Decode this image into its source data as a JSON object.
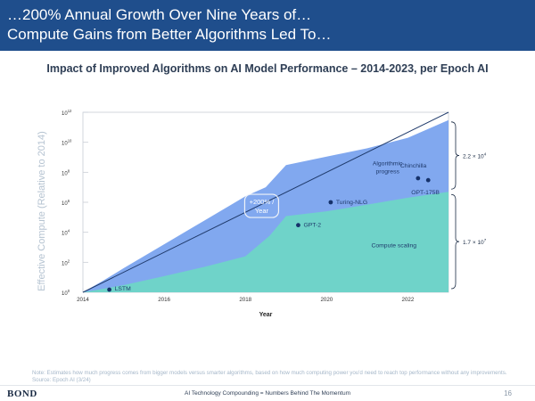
{
  "header": {
    "line1": "…200% Annual Growth Over Nine Years of…",
    "line2": "Compute Gains from Better Algorithms Led To…"
  },
  "subtitle": "Impact of Improved Algorithms on AI Model Performance – 2014-2023, per Epoch AI",
  "chart_data": {
    "type": "area",
    "xlabel": "Year",
    "ylabel": "Effective Compute (Relative to 2014)",
    "xlim": [
      2014,
      2023
    ],
    "ylim": [
      1,
      1000000000000
    ],
    "y_scale": "log",
    "x_ticks": [
      "2014",
      "2016",
      "2018",
      "2020",
      "2022"
    ],
    "y_tick_values": [
      1,
      100,
      10000,
      1000000,
      100000000,
      10000000000,
      1000000000000
    ],
    "y_tick_bases": [
      "10",
      "10",
      "10",
      "10",
      "10",
      "10",
      "10"
    ],
    "y_tick_exponents": [
      "0",
      "2",
      "4",
      "6",
      "8",
      "10",
      "12"
    ],
    "series": [
      {
        "name": "Algorithmic progress",
        "color": "#7aa3ee",
        "x": [
          2014,
          2014.5,
          2015,
          2016,
          2017,
          2018,
          2018.5,
          2019,
          2020,
          2021,
          2022,
          2023
        ],
        "y": [
          1,
          6,
          40,
          1600,
          63000,
          2500000,
          10000000,
          300000000,
          1100000000,
          4000000000,
          20000000000,
          300000000000
        ]
      },
      {
        "name": "Compute scaling",
        "color": "#6fd3c9",
        "x": [
          2014,
          2015,
          2016,
          2017,
          2018,
          2018.6,
          2019,
          2020,
          2021,
          2022,
          2023
        ],
        "y": [
          1,
          3,
          12,
          50,
          250,
          6000,
          120000,
          250000,
          700000,
          2000000,
          5000000
        ]
      }
    ],
    "trend_line": {
      "x": [
        2014,
        2023
      ],
      "y": [
        1,
        1000000000000
      ]
    },
    "models": [
      {
        "name": "LSTM",
        "x": 2014.65,
        "y": 1.5,
        "label_dx": 6,
        "label_dy": 1
      },
      {
        "name": "GPT-2",
        "x": 2019.3,
        "y": 30000,
        "label_dx": 6,
        "label_dy": 2
      },
      {
        "name": "Turing-NLG",
        "x": 2020.1,
        "y": 1000000,
        "label_dx": 6,
        "label_dy": 2
      },
      {
        "name": "Chinchilla",
        "x": 2022.25,
        "y": 40000000,
        "label_dx": -20,
        "label_dy": -12
      },
      {
        "name": "OPT-175B",
        "x": 2022.5,
        "y": 30000000,
        "label_dx": -19,
        "label_dy": 16
      }
    ],
    "annotations": {
      "rate_box": [
        "+200% /",
        "Year"
      ],
      "rate_box_anchor": {
        "x": 2018.4,
        "y": 500000
      },
      "algorithmic_label": [
        "Algorithmic",
        "progress"
      ],
      "algorithmic_anchor": {
        "x": 2021.5,
        "y": 300000000
      },
      "compute_label": "Compute scaling",
      "compute_anchor": {
        "x": 2021.1,
        "y": 1000
      },
      "upper_brace_value": "2.2 × 10",
      "upper_brace_exp": "4",
      "lower_brace_value": "1.7 × 10",
      "lower_brace_exp": "7"
    }
  },
  "footnote": "Note: Estimates how much progress comes from bigger models versus smarter algorithms, based on how much computing power you'd need to reach top performance without any improvements. Source: Epoch AI (3/24)",
  "footer": {
    "brand": "BOND",
    "center": "AI Technology Compounding = Numbers Behind The Momentum",
    "page": "16"
  }
}
